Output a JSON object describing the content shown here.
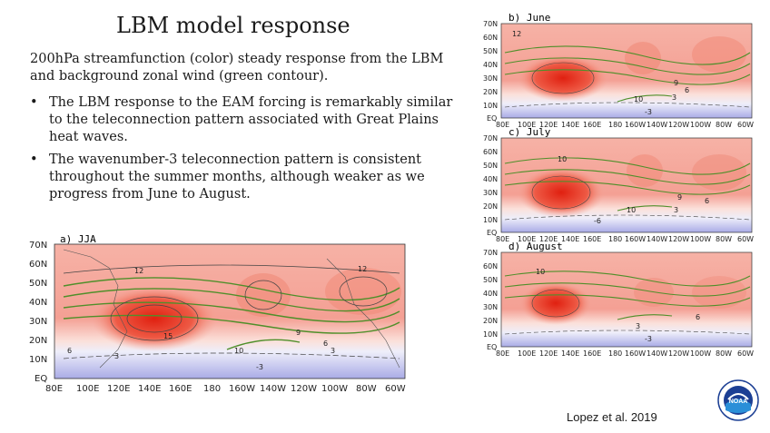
{
  "slide": {
    "title": "LBM model response",
    "intro": "200hPa streamfunction (color) steady response from the LBM and background zonal wind (green contour).",
    "bullets": [
      "The LBM response to the EAM forcing is remarkably similar to the teleconnection pattern associated with Great Plains heat waves.",
      "The wavenumber-3 teleconnection pattern is consistent throughout the summer months, although weaker as we progress from June to August."
    ],
    "bullet_glyph": "•",
    "citation": "Lopez et al. 2019",
    "logo_text": "NOAA"
  },
  "maps": {
    "lat_labels": [
      "70N",
      "60N",
      "50N",
      "40N",
      "30N",
      "20N",
      "10N",
      "EQ"
    ],
    "lon_labels": [
      "80E",
      "100E",
      "120E",
      "140E",
      "160E",
      "180",
      "160W",
      "140W",
      "120W",
      "100W",
      "80W",
      "60W"
    ],
    "panels": [
      {
        "label": "a)  JJA",
        "contours": [
          "12",
          "15",
          "9",
          "6",
          "3",
          "-3",
          "10",
          "12",
          "6",
          "3"
        ]
      },
      {
        "label": "b)  June",
        "contours": [
          "12",
          "9",
          "6",
          "10",
          "3",
          "-3"
        ]
      },
      {
        "label": "c)  July",
        "contours": [
          "10",
          "9",
          "6",
          "10",
          "3",
          "-6"
        ]
      },
      {
        "label": "d)  August",
        "contours": [
          "10",
          "6",
          "3",
          "-3"
        ]
      }
    ]
  },
  "colors": {
    "positive": "#e8452f",
    "positive_light": "#f7b8ad",
    "negative": "#8c8fe0",
    "contour_green": "#4f8f2a"
  }
}
